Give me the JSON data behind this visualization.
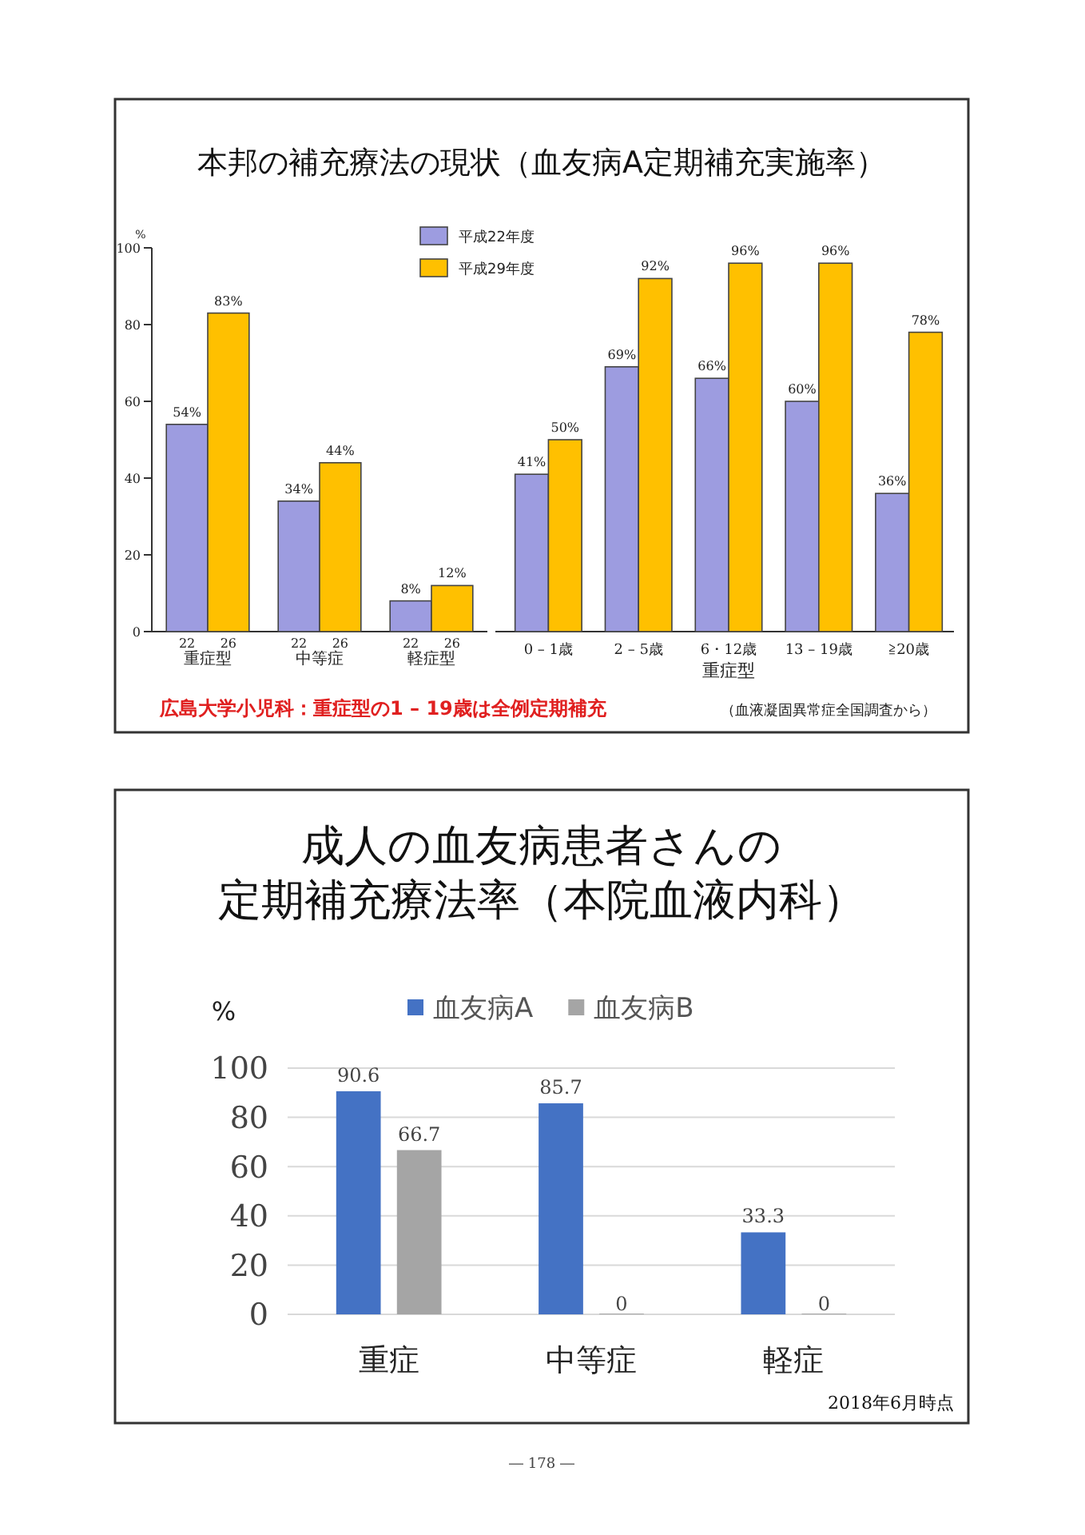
{
  "chart_data": [
    {
      "type": "bar",
      "title": "本邦の補充療法の現状（血友病A定期補充実施率）",
      "ylabel": "%",
      "categories": [
        "重症型",
        "中等症",
        "軽症型"
      ],
      "series": [
        {
          "name": "平成22年度",
          "color": "#9d9ce0",
          "values": [
            54,
            34,
            8
          ],
          "value_labels": [
            "54%",
            "34%",
            "8%"
          ]
        },
        {
          "name": "平成29年度",
          "color": "#ffc000",
          "values": [
            83,
            44,
            12
          ],
          "value_labels": [
            "83%",
            "44%",
            "12%"
          ]
        }
      ],
      "ylim": [
        0,
        100
      ],
      "yticks": [
        0,
        20,
        40,
        60,
        80,
        100
      ],
      "legend": "top right",
      "annotations": [
        {
          "text": "22",
          "x": "重症型",
          "y": 0
        },
        {
          "text": "26",
          "x": "重症型",
          "y": 0
        },
        {
          "text": "22",
          "x": "中等症",
          "y": 0
        },
        {
          "text": "26",
          "x": "中等症",
          "y": 0
        },
        {
          "text": "22",
          "x": "軽症型",
          "y": 0
        },
        {
          "text": "26",
          "x": "軽症型",
          "y": 0
        }
      ]
    },
    {
      "type": "bar",
      "xlabel": "重症型",
      "categories": [
        "0 – 1歳",
        "2 – 5歳",
        "6・12歳",
        "13 – 19歳",
        "≧20歳"
      ],
      "series": [
        {
          "color": "#9d9ce0",
          "values": [
            41,
            69,
            66,
            60,
            36
          ],
          "value_labels": [
            "41%",
            "69%",
            "66%",
            "60%",
            "36%"
          ]
        },
        {
          "color": "#ffc000",
          "values": [
            50,
            92,
            96,
            96,
            78
          ],
          "value_labels": [
            "50%",
            "92%",
            "96%",
            "96%",
            "78%"
          ]
        }
      ],
      "ylim": [
        0,
        100
      ],
      "tick_labels": "x",
      "annotations": [
        "広島大学小児科：重症型の1 – 19歳は全例定期補充",
        "（血液凝固異常症全国調査から）"
      ]
    },
    {
      "type": "bar",
      "title": "成人の血友病患者さんの",
      "subtitle": "定期補充療法率（本院血液内科）",
      "ylabel": "%",
      "categories": [
        "重症",
        "中等症",
        "軽症"
      ],
      "series": [
        {
          "name": "血友病A",
          "color": "#4472c4",
          "values": [
            90.6,
            85.7,
            33.3
          ]
        },
        {
          "name": "血友病B",
          "color": "#a5a5a5",
          "values": [
            66.7,
            0,
            0
          ]
        }
      ],
      "ylim": [
        0,
        100
      ],
      "yticks": [
        0,
        20,
        40,
        60,
        80,
        100
      ],
      "grid": "y",
      "legend": "top",
      "data_labels": true,
      "annotations": [
        "2018年6月時点",
        "― 178 ―"
      ]
    }
  ]
}
